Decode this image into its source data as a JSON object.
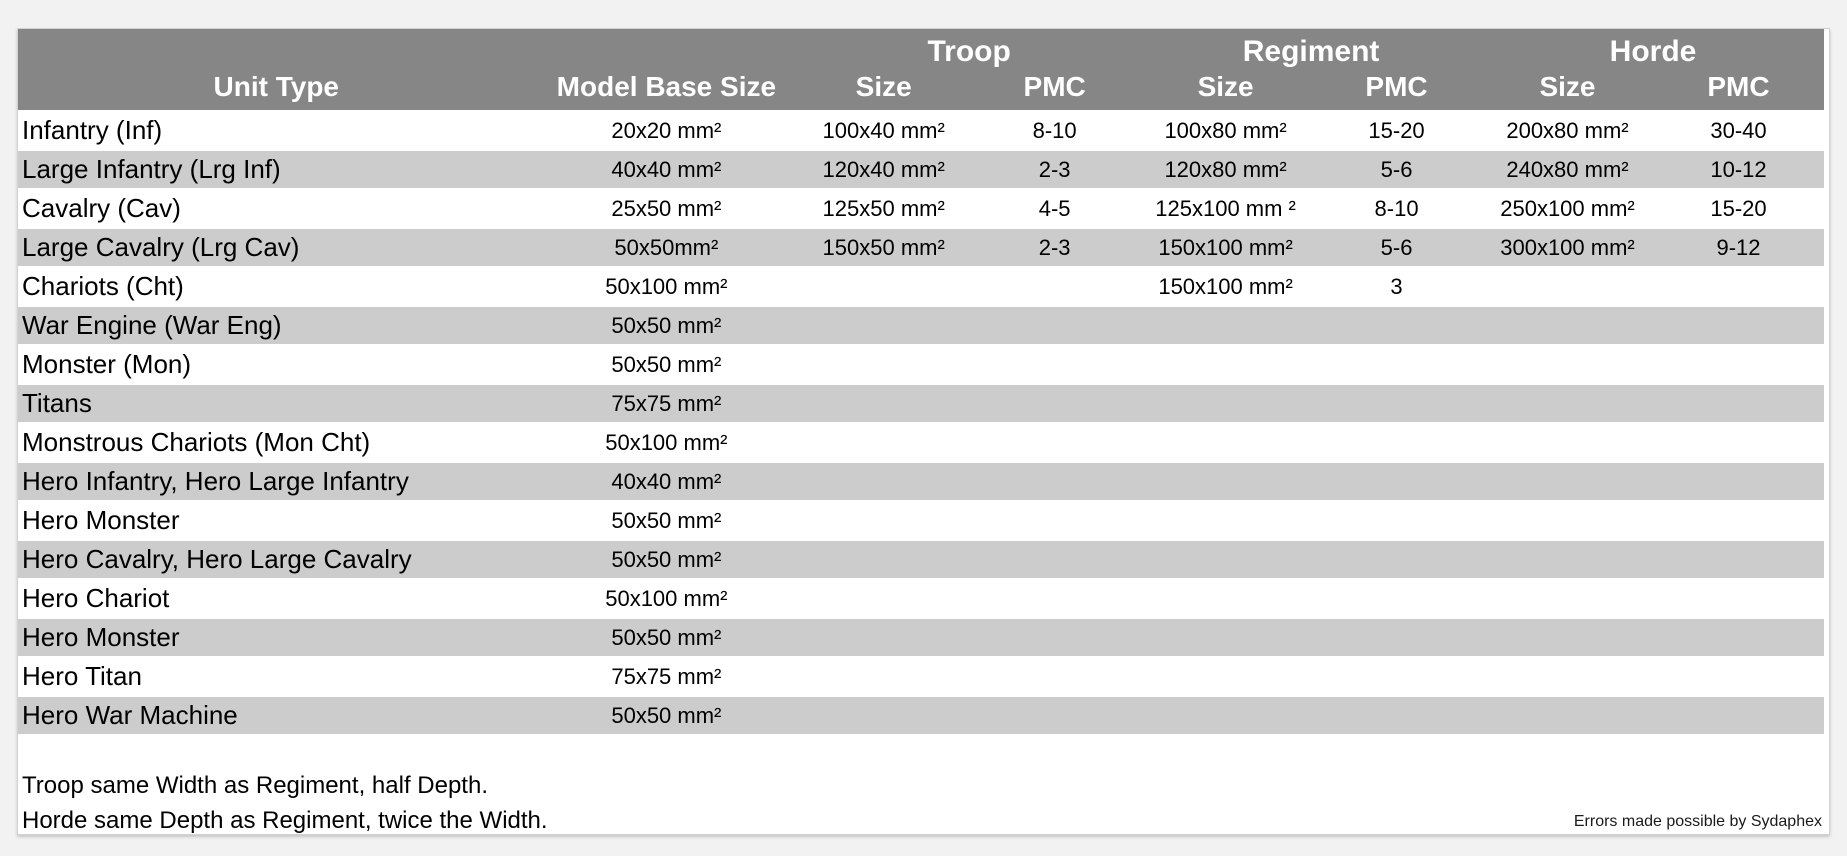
{
  "table": {
    "groups": [
      "Troop",
      "Regiment",
      "Horde"
    ],
    "columns": {
      "unit_type": "Unit Type",
      "model_base_size": "Model Base Size",
      "size": "Size",
      "pmc": "PMC"
    }
  },
  "rows": [
    {
      "unit": "Infantry (Inf)",
      "base": "20x20 mm²",
      "troop_size": "100x40 mm²",
      "troop_pmc": "8-10",
      "regiment_size": "100x80 mm²",
      "regiment_pmc": "15-20",
      "horde_size": "200x80 mm²",
      "horde_pmc": "30-40"
    },
    {
      "unit": "Large Infantry (Lrg Inf)",
      "base": "40x40 mm²",
      "troop_size": "120x40 mm²",
      "troop_pmc": "2-3",
      "regiment_size": "120x80 mm²",
      "regiment_pmc": "5-6",
      "horde_size": "240x80 mm²",
      "horde_pmc": "10-12"
    },
    {
      "unit": "Cavalry (Cav)",
      "base": "25x50 mm²",
      "troop_size": "125x50 mm²",
      "troop_pmc": "4-5",
      "regiment_size": "125x100 mm ²",
      "regiment_pmc": "8-10",
      "horde_size": "250x100 mm²",
      "horde_pmc": "15-20"
    },
    {
      "unit": "Large Cavalry (Lrg Cav)",
      "base": "50x50mm²",
      "troop_size": "150x50 mm²",
      "troop_pmc": "2-3",
      "regiment_size": "150x100 mm²",
      "regiment_pmc": "5-6",
      "horde_size": "300x100 mm²",
      "horde_pmc": "9-12"
    },
    {
      "unit": "Chariots (Cht)",
      "base": "50x100 mm²",
      "troop_size": "",
      "troop_pmc": "",
      "regiment_size": "150x100 mm²",
      "regiment_pmc": "3",
      "horde_size": "",
      "horde_pmc": ""
    },
    {
      "unit": "War Engine (War Eng)",
      "base": "50x50 mm²",
      "troop_size": "",
      "troop_pmc": "",
      "regiment_size": "",
      "regiment_pmc": "",
      "horde_size": "",
      "horde_pmc": ""
    },
    {
      "unit": "Monster (Mon)",
      "base": "50x50 mm²",
      "troop_size": "",
      "troop_pmc": "",
      "regiment_size": "",
      "regiment_pmc": "",
      "horde_size": "",
      "horde_pmc": ""
    },
    {
      "unit": "Titans",
      "base": "75x75 mm²",
      "troop_size": "",
      "troop_pmc": "",
      "regiment_size": "",
      "regiment_pmc": "",
      "horde_size": "",
      "horde_pmc": ""
    },
    {
      "unit": "Monstrous Chariots (Mon Cht)",
      "base": "50x100 mm²",
      "troop_size": "",
      "troop_pmc": "",
      "regiment_size": "",
      "regiment_pmc": "",
      "horde_size": "",
      "horde_pmc": ""
    },
    {
      "unit": "Hero Infantry, Hero Large Infantry",
      "base": "40x40 mm²",
      "troop_size": "",
      "troop_pmc": "",
      "regiment_size": "",
      "regiment_pmc": "",
      "horde_size": "",
      "horde_pmc": ""
    },
    {
      "unit": "Hero Monster",
      "base": "50x50 mm²",
      "troop_size": "",
      "troop_pmc": "",
      "regiment_size": "",
      "regiment_pmc": "",
      "horde_size": "",
      "horde_pmc": ""
    },
    {
      "unit": "Hero Cavalry, Hero Large Cavalry",
      "base": "50x50 mm²",
      "troop_size": "",
      "troop_pmc": "",
      "regiment_size": "",
      "regiment_pmc": "",
      "horde_size": "",
      "horde_pmc": ""
    },
    {
      "unit": "Hero Chariot",
      "base": "50x100 mm²",
      "troop_size": "",
      "troop_pmc": "",
      "regiment_size": "",
      "regiment_pmc": "",
      "horde_size": "",
      "horde_pmc": ""
    },
    {
      "unit": "Hero Monster",
      "base": "50x50 mm²",
      "troop_size": "",
      "troop_pmc": "",
      "regiment_size": "",
      "regiment_pmc": "",
      "horde_size": "",
      "horde_pmc": ""
    },
    {
      "unit": "Hero Titan",
      "base": "75x75 mm²",
      "troop_size": "",
      "troop_pmc": "",
      "regiment_size": "",
      "regiment_pmc": "",
      "horde_size": "",
      "horde_pmc": ""
    },
    {
      "unit": "Hero War Machine",
      "base": "50x50 mm²",
      "troop_size": "",
      "troop_pmc": "",
      "regiment_size": "",
      "regiment_pmc": "",
      "horde_size": "",
      "horde_pmc": ""
    }
  ],
  "notes": [
    "Troop same Width as Regiment, half Depth.",
    "Horde same Depth as Regiment, twice the Width."
  ],
  "credit": "Errors made possible by Sydaphex",
  "colors": {
    "page_bg": "#f2f2f2",
    "card_bg": "#ffffff",
    "header_bg": "#868686",
    "header_fg": "#ffffff",
    "stripe": "#cccccc",
    "ink": "#000000"
  }
}
